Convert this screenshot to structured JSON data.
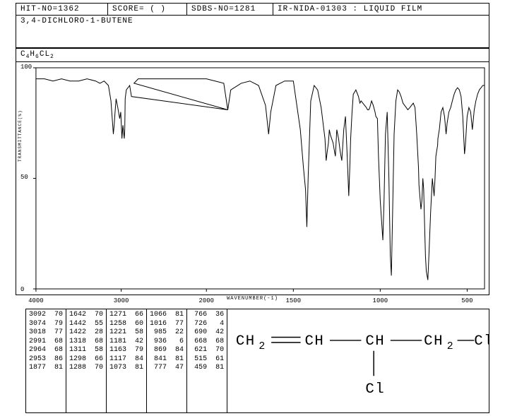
{
  "header": {
    "hit_no": "HIT-NO=1362",
    "score": "SCORE=  (  )",
    "sdbs_no": "SDBS-NO=1281",
    "method": "IR-NIDA-01303 : LIQUID FILM"
  },
  "compound_name": "3,4-DICHLORO-1-BUTENE",
  "formula_html": "C<sub>4</sub>H<sub>6</sub>CL<sub>2</sub>",
  "chart": {
    "type": "line",
    "xlabel": "WAVENUMBER(-1)",
    "ylabel": "TRANSMITTANCE(%)",
    "xlim": [
      4000,
      400
    ],
    "ylim": [
      0,
      100
    ],
    "yticks": [
      0,
      50,
      100
    ],
    "xticks": [
      4000,
      3000,
      2000,
      1500,
      1000,
      500
    ],
    "line_color": "#000000",
    "background_color": "#ffffff",
    "grid": false,
    "spectrum": [
      [
        4000,
        95
      ],
      [
        3900,
        95
      ],
      [
        3800,
        94
      ],
      [
        3700,
        95
      ],
      [
        3600,
        94
      ],
      [
        3500,
        94
      ],
      [
        3400,
        95
      ],
      [
        3300,
        94
      ],
      [
        3250,
        93
      ],
      [
        3200,
        94
      ],
      [
        3150,
        92
      ],
      [
        3120,
        85
      ],
      [
        3092,
        70
      ],
      [
        3080,
        75
      ],
      [
        3074,
        79
      ],
      [
        3060,
        86
      ],
      [
        3040,
        82
      ],
      [
        3018,
        77
      ],
      [
        3005,
        80
      ],
      [
        2991,
        68
      ],
      [
        2980,
        74
      ],
      [
        2964,
        68
      ],
      [
        2958,
        72
      ],
      [
        2953,
        86
      ],
      [
        2940,
        90
      ],
      [
        2900,
        92
      ],
      [
        2880,
        87
      ],
      [
        1877,
        81
      ],
      [
        2850,
        93
      ],
      [
        2800,
        95
      ],
      [
        2700,
        95
      ],
      [
        2600,
        95
      ],
      [
        2500,
        95
      ],
      [
        2400,
        95
      ],
      [
        2300,
        95
      ],
      [
        2200,
        95
      ],
      [
        2100,
        95
      ],
      [
        2050,
        95
      ],
      [
        2000,
        95
      ],
      [
        1950,
        94
      ],
      [
        1900,
        93
      ],
      [
        1877,
        81
      ],
      [
        1860,
        90
      ],
      [
        1800,
        93
      ],
      [
        1750,
        94
      ],
      [
        1700,
        92
      ],
      [
        1660,
        83
      ],
      [
        1642,
        70
      ],
      [
        1630,
        80
      ],
      [
        1600,
        92
      ],
      [
        1550,
        94
      ],
      [
        1500,
        94
      ],
      [
        1460,
        72
      ],
      [
        1442,
        55
      ],
      [
        1430,
        45
      ],
      [
        1422,
        28
      ],
      [
        1415,
        50
      ],
      [
        1400,
        85
      ],
      [
        1380,
        92
      ],
      [
        1360,
        90
      ],
      [
        1340,
        82
      ],
      [
        1318,
        68
      ],
      [
        1311,
        58
      ],
      [
        1305,
        62
      ],
      [
        1298,
        66
      ],
      [
        1293,
        72
      ],
      [
        1288,
        70
      ],
      [
        1280,
        68
      ],
      [
        1271,
        66
      ],
      [
        1265,
        63
      ],
      [
        1258,
        60
      ],
      [
        1250,
        72
      ],
      [
        1240,
        68
      ],
      [
        1230,
        62
      ],
      [
        1221,
        58
      ],
      [
        1210,
        72
      ],
      [
        1200,
        78
      ],
      [
        1190,
        60
      ],
      [
        1181,
        42
      ],
      [
        1175,
        55
      ],
      [
        1170,
        68
      ],
      [
        1163,
        79
      ],
      [
        1155,
        88
      ],
      [
        1140,
        90
      ],
      [
        1125,
        87
      ],
      [
        1117,
        84
      ],
      [
        1110,
        85
      ],
      [
        1100,
        84
      ],
      [
        1090,
        83
      ],
      [
        1080,
        82
      ],
      [
        1073,
        81
      ],
      [
        1066,
        81
      ],
      [
        1060,
        82
      ],
      [
        1050,
        85
      ],
      [
        1040,
        83
      ],
      [
        1030,
        80
      ],
      [
        1025,
        78
      ],
      [
        1016,
        77
      ],
      [
        1010,
        60
      ],
      [
        1000,
        40
      ],
      [
        985,
        22
      ],
      [
        978,
        40
      ],
      [
        970,
        70
      ],
      [
        960,
        80
      ],
      [
        950,
        50
      ],
      [
        942,
        15
      ],
      [
        936,
        6
      ],
      [
        930,
        30
      ],
      [
        920,
        70
      ],
      [
        910,
        85
      ],
      [
        900,
        90
      ],
      [
        890,
        89
      ],
      [
        880,
        87
      ],
      [
        869,
        84
      ],
      [
        860,
        83
      ],
      [
        850,
        82
      ],
      [
        841,
        81
      ],
      [
        830,
        82
      ],
      [
        820,
        83
      ],
      [
        810,
        84
      ],
      [
        800,
        82
      ],
      [
        790,
        70
      ],
      [
        780,
        55
      ],
      [
        777,
        47
      ],
      [
        770,
        40
      ],
      [
        766,
        36
      ],
      [
        760,
        40
      ],
      [
        755,
        50
      ],
      [
        750,
        45
      ],
      [
        745,
        30
      ],
      [
        740,
        15
      ],
      [
        735,
        8
      ],
      [
        726,
        4
      ],
      [
        720,
        15
      ],
      [
        710,
        35
      ],
      [
        700,
        50
      ],
      [
        690,
        42
      ],
      [
        685,
        50
      ],
      [
        680,
        60
      ],
      [
        670,
        65
      ],
      [
        668,
        68
      ],
      [
        660,
        72
      ],
      [
        650,
        80
      ],
      [
        640,
        82
      ],
      [
        630,
        78
      ],
      [
        621,
        70
      ],
      [
        615,
        75
      ],
      [
        605,
        80
      ],
      [
        595,
        82
      ],
      [
        585,
        85
      ],
      [
        575,
        88
      ],
      [
        565,
        90
      ],
      [
        555,
        91
      ],
      [
        545,
        90
      ],
      [
        535,
        87
      ],
      [
        525,
        78
      ],
      [
        515,
        61
      ],
      [
        510,
        65
      ],
      [
        500,
        78
      ],
      [
        490,
        82
      ],
      [
        480,
        80
      ],
      [
        470,
        72
      ],
      [
        459,
        81
      ],
      [
        450,
        85
      ],
      [
        440,
        88
      ],
      [
        430,
        90
      ],
      [
        420,
        91
      ],
      [
        410,
        92
      ],
      [
        400,
        92
      ]
    ]
  },
  "peaks": [
    [
      [
        3092,
        70
      ],
      [
        3074,
        79
      ],
      [
        3018,
        77
      ],
      [
        2991,
        68
      ],
      [
        2964,
        68
      ],
      [
        2953,
        86
      ],
      [
        1877,
        81
      ]
    ],
    [
      [
        1642,
        70
      ],
      [
        1442,
        55
      ],
      [
        1422,
        28
      ],
      [
        1318,
        68
      ],
      [
        1311,
        58
      ],
      [
        1298,
        66
      ],
      [
        1288,
        70
      ]
    ],
    [
      [
        1271,
        66
      ],
      [
        1258,
        60
      ],
      [
        1221,
        58
      ],
      [
        1181,
        42
      ],
      [
        1163,
        79
      ],
      [
        1117,
        84
      ],
      [
        1073,
        81
      ]
    ],
    [
      [
        1066,
        81
      ],
      [
        1016,
        77
      ],
      [
        985,
        22
      ],
      [
        936,
        6
      ],
      [
        869,
        84
      ],
      [
        841,
        81
      ],
      [
        777,
        47
      ]
    ],
    [
      [
        766,
        36
      ],
      [
        726,
        4
      ],
      [
        690,
        42
      ],
      [
        668,
        68
      ],
      [
        621,
        70
      ],
      [
        515,
        61
      ],
      [
        459,
        81
      ]
    ]
  ],
  "structure": {
    "text_parts": [
      "CH",
      "2",
      "CH",
      "CH",
      "CH",
      "2",
      "Cl",
      "Cl"
    ],
    "font_size": 14
  }
}
